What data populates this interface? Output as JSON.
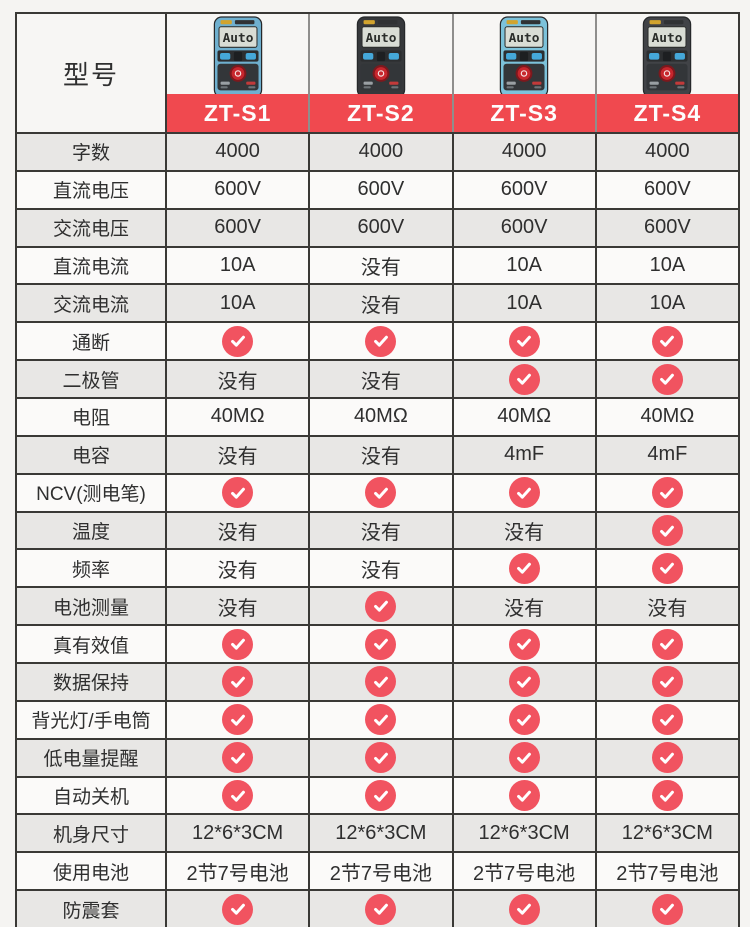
{
  "colors": {
    "band_red": "#f0494f",
    "check_red": "#f15360",
    "row_gray": "#e8e7e5",
    "row_white": "#fbfaf9",
    "border_dark": "#3a3936",
    "text_dark": "#2f2f2f",
    "screen_bg": "#d9ddd5",
    "button_blue": "#45a8d9",
    "power_red": "#c7262d",
    "face_dark": "#2c2e30"
  },
  "table": {
    "model_header_label": "型号",
    "screen_text": "Auto",
    "models": [
      {
        "name": "ZT-S1",
        "body_color": "#6fb0cf"
      },
      {
        "name": "ZT-S2",
        "body_color": "#36383b"
      },
      {
        "name": "ZT-S3",
        "body_color": "#7cc2da"
      },
      {
        "name": "ZT-S4",
        "body_color": "#414347"
      }
    ],
    "rows": [
      {
        "label": "字数",
        "values": [
          "4000",
          "4000",
          "4000",
          "4000"
        ]
      },
      {
        "label": "直流电压",
        "values": [
          "600V",
          "600V",
          "600V",
          "600V"
        ]
      },
      {
        "label": "交流电压",
        "values": [
          "600V",
          "600V",
          "600V",
          "600V"
        ]
      },
      {
        "label": "直流电流",
        "values": [
          "10A",
          "没有",
          "10A",
          "10A"
        ]
      },
      {
        "label": "交流电流",
        "values": [
          "10A",
          "没有",
          "10A",
          "10A"
        ]
      },
      {
        "label": "通断",
        "values": [
          "check",
          "check",
          "check",
          "check"
        ]
      },
      {
        "label": "二极管",
        "values": [
          "没有",
          "没有",
          "check",
          "check"
        ]
      },
      {
        "label": "电阻",
        "values": [
          "40MΩ",
          "40MΩ",
          "40MΩ",
          "40MΩ"
        ]
      },
      {
        "label": "电容",
        "values": [
          "没有",
          "没有",
          "4mF",
          "4mF"
        ]
      },
      {
        "label": "NCV(测电笔)",
        "values": [
          "check",
          "check",
          "check",
          "check"
        ]
      },
      {
        "label": "温度",
        "values": [
          "没有",
          "没有",
          "没有",
          "check"
        ]
      },
      {
        "label": "频率",
        "values": [
          "没有",
          "没有",
          "check",
          "check"
        ]
      },
      {
        "label": "电池测量",
        "values": [
          "没有",
          "check",
          "没有",
          "没有"
        ]
      },
      {
        "label": "真有效值",
        "values": [
          "check",
          "check",
          "check",
          "check"
        ]
      },
      {
        "label": "数据保持",
        "values": [
          "check",
          "check",
          "check",
          "check"
        ]
      },
      {
        "label": "背光灯/手电筒",
        "values": [
          "check",
          "check",
          "check",
          "check"
        ]
      },
      {
        "label": "低电量提醒",
        "values": [
          "check",
          "check",
          "check",
          "check"
        ]
      },
      {
        "label": "自动关机",
        "values": [
          "check",
          "check",
          "check",
          "check"
        ]
      },
      {
        "label": "机身尺寸",
        "values": [
          "12*6*3CM",
          "12*6*3CM",
          "12*6*3CM",
          "12*6*3CM"
        ]
      },
      {
        "label": "使用电池",
        "values": [
          "2节7号电池",
          "2节7号电池",
          "2节7号电池",
          "2节7号电池"
        ]
      },
      {
        "label": "防震套",
        "values": [
          "check",
          "check",
          "check",
          "check"
        ]
      }
    ]
  }
}
